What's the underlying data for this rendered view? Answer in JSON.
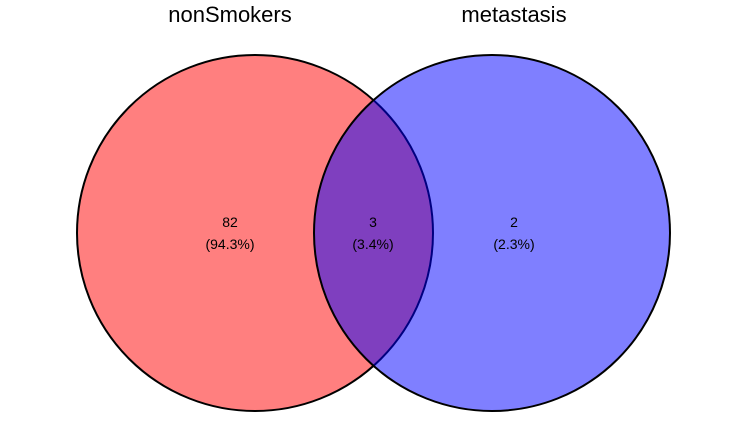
{
  "sets": [
    {
      "name": "nonSmokers",
      "color": "#FF0000",
      "opacity": 0.5
    },
    {
      "name": "metastasis",
      "color": "#0000FF",
      "opacity": 0.5
    }
  ],
  "regions": {
    "only_a": {
      "count": "82",
      "percent": "(94.3%)"
    },
    "both": {
      "count": "3",
      "percent": "(3.4%)"
    },
    "only_b": {
      "count": "2",
      "percent": "(2.3%)"
    }
  },
  "outline_color": "#000000"
}
